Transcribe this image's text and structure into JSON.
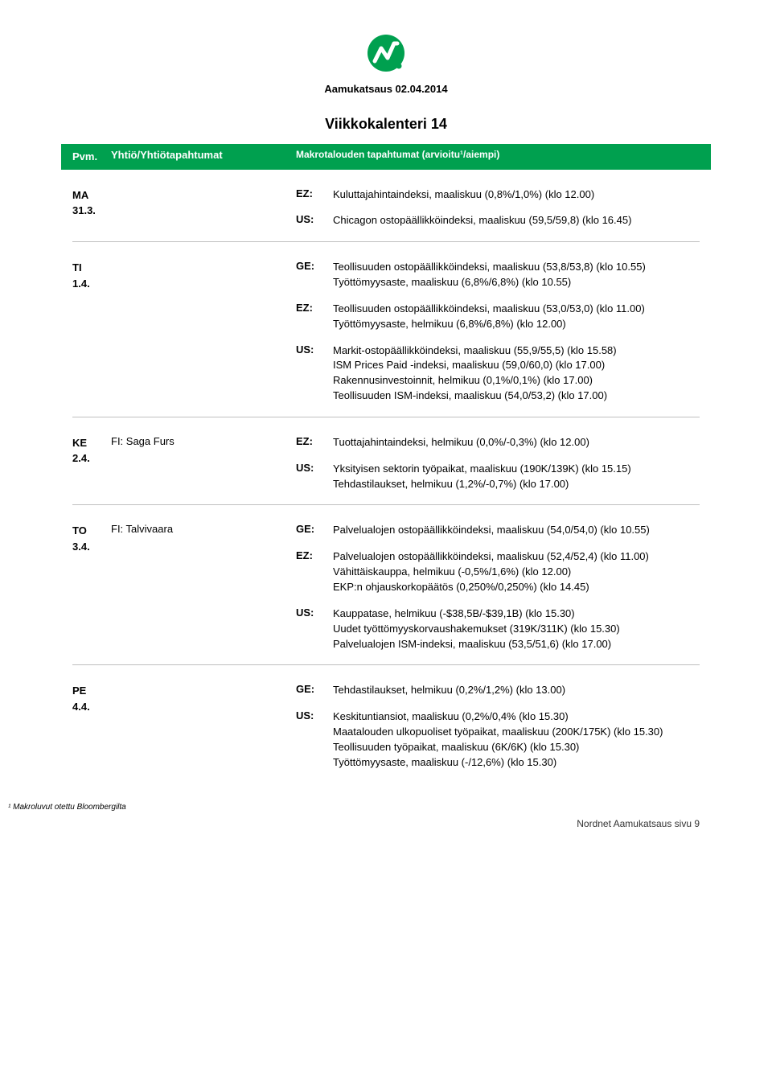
{
  "colors": {
    "brand_green": "#00a04f",
    "brand_green_dark": "#007a3d",
    "divider": "#bfbfbf"
  },
  "doc_title": "Aamukatsaus 02.04.2014",
  "week_title": "Viikkokalenteri 14",
  "header": {
    "date": "Pvm.",
    "company": "Yhtiö/Yhtiötapahtumat",
    "macro": "Makrotalouden tapahtumat (arvioitu¹/aiempi)"
  },
  "days": [
    {
      "date_top": "MA",
      "date_bottom": "31.3.",
      "company": "",
      "macros": [
        {
          "code": "EZ:",
          "lines": [
            "Kuluttajahintaindeksi, maaliskuu (0,8%/1,0%) (klo 12.00)"
          ]
        },
        {
          "code": "US:",
          "lines": [
            "Chicagon ostopäällikköindeksi, maaliskuu (59,5/59,8) (klo 16.45)"
          ]
        }
      ]
    },
    {
      "date_top": "TI",
      "date_bottom": "1.4.",
      "company": "",
      "macros": [
        {
          "code": "GE:",
          "lines": [
            "Teollisuuden ostopäällikköindeksi, maaliskuu (53,8/53,8) (klo 10.55)",
            "Työttömyysaste, maaliskuu (6,8%/6,8%) (klo 10.55)"
          ]
        },
        {
          "code": "EZ:",
          "lines": [
            "Teollisuuden ostopäällikköindeksi, maaliskuu (53,0/53,0) (klo 11.00)",
            "Työttömyysaste, helmikuu (6,8%/6,8%) (klo 12.00)"
          ]
        },
        {
          "code": "US:",
          "lines": [
            "Markit-ostopäällikköindeksi, maaliskuu (55,9/55,5) (klo 15.58)",
            "ISM Prices Paid -indeksi, maaliskuu (59,0/60,0) (klo 17.00)",
            "Rakennusinvestoinnit, helmikuu (0,1%/0,1%) (klo 17.00)",
            "Teollisuuden ISM-indeksi, maaliskuu (54,0/53,2) (klo 17.00)"
          ]
        }
      ]
    },
    {
      "date_top": "KE",
      "date_bottom": "2.4.",
      "company": "FI: Saga Furs",
      "macros": [
        {
          "code": "EZ:",
          "lines": [
            "Tuottajahintaindeksi, helmikuu (0,0%/-0,3%) (klo 12.00)"
          ]
        },
        {
          "code": "US:",
          "lines": [
            "Yksityisen sektorin työpaikat, maaliskuu (190K/139K) (klo 15.15)",
            "Tehdastilaukset, helmikuu (1,2%/-0,7%) (klo 17.00)"
          ]
        }
      ]
    },
    {
      "date_top": "TO",
      "date_bottom": "3.4.",
      "company": "FI: Talvivaara",
      "macros": [
        {
          "code": "GE:",
          "lines": [
            "Palvelualojen ostopäällikköindeksi, maaliskuu (54,0/54,0) (klo 10.55)"
          ]
        },
        {
          "code": "EZ:",
          "lines": [
            "Palvelualojen ostopäällikköindeksi, maaliskuu (52,4/52,4) (klo 11.00)",
            "Vähittäiskauppa, helmikuu (-0,5%/1,6%) (klo 12.00)",
            "EKP:n ohjauskorkopäätös (0,250%/0,250%) (klo 14.45)"
          ]
        },
        {
          "code": "US:",
          "lines": [
            "Kauppatase, helmikuu (-$38,5B/-$39,1B) (klo 15.30)",
            "Uudet työttömyyskorvaushakemukset (319K/311K) (klo 15.30)",
            "Palvelualojen ISM-indeksi, maaliskuu (53,5/51,6) (klo 17.00)"
          ]
        }
      ]
    },
    {
      "date_top": "PE",
      "date_bottom": "4.4.",
      "company": "",
      "macros": [
        {
          "code": "GE:",
          "lines": [
            "Tehdastilaukset, helmikuu (0,2%/1,2%) (klo 13.00)"
          ]
        },
        {
          "code": "US:",
          "lines": [
            "Keskituntiansiot, maaliskuu (0,2%/0,4% (klo 15.30)",
            "Maatalouden ulkopuoliset työpaikat, maaliskuu (200K/175K) (klo 15.30)",
            "Teollisuuden työpaikat, maaliskuu (6K/6K) (klo 15.30)",
            "Työttömyysaste, maaliskuu (-/12,6%) (klo 15.30)"
          ]
        }
      ]
    }
  ],
  "footnote": "¹ Makroluvut otettu Bloombergilta",
  "footer": "Nordnet Aamukatsaus sivu 9"
}
